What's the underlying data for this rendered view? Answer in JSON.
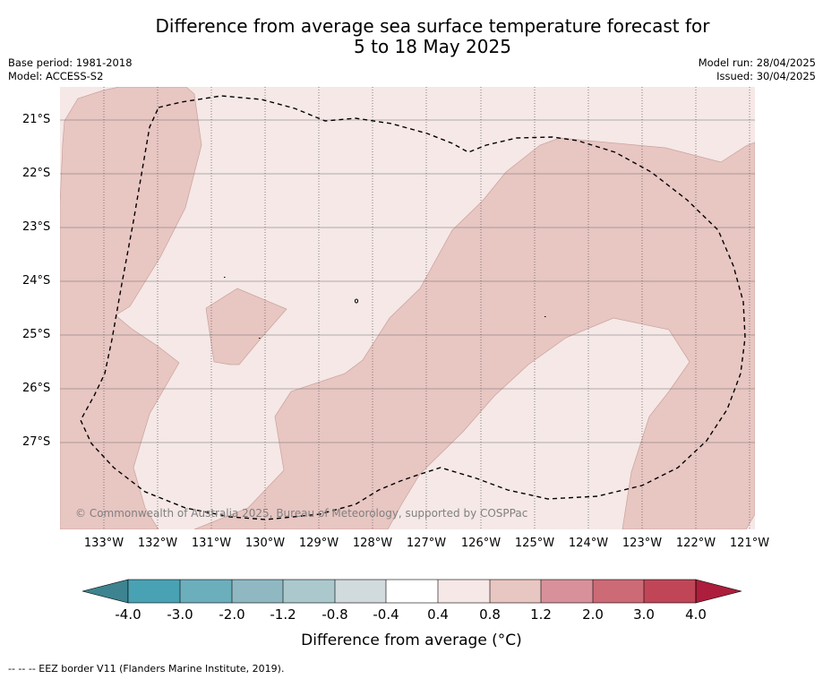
{
  "title": {
    "line1": "Difference from average sea surface temperature forecast for",
    "line2": "5 to 18 May 2025"
  },
  "meta": {
    "base_period": "Base period: 1981-2018",
    "model": "Model: ACCESS-S2",
    "model_run": "Model run: 28/04/2025",
    "issued": "Issued: 30/04/2025"
  },
  "map": {
    "lat_labels": [
      "21°S",
      "22°S",
      "23°S",
      "24°S",
      "25°S",
      "26°S",
      "27°S"
    ],
    "lon_labels": [
      "133°W",
      "132°W",
      "131°W",
      "130°W",
      "129°W",
      "128°W",
      "127°W",
      "126°W",
      "125°W",
      "124°W",
      "123°W",
      "122°W",
      "121°W"
    ],
    "copyright": "© Commonwealth of Australia 2025, Bureau of Meteorology, supported by COSPPac",
    "colors": {
      "anomaly_0_4_to_0_8": "#f5e8e6",
      "anomaly_0_8_to_1_2": "#e8c6c2"
    }
  },
  "colorbar": {
    "ticks": [
      "-4.0",
      "-3.0",
      "-2.0",
      "-1.2",
      "-0.8",
      "-0.4",
      "0.4",
      "0.8",
      "1.2",
      "2.0",
      "3.0",
      "4.0"
    ],
    "colors": [
      "#3d8490",
      "#49a2b3",
      "#6baebc",
      "#8fb8c3",
      "#abc8cd",
      "#d1dadd",
      "#ffffff",
      "#f5e8e6",
      "#e8c6c2",
      "#d8919a",
      "#cc6a75",
      "#c04657",
      "#ac1e3c"
    ],
    "label": "Difference from average (°C)"
  },
  "footnote": "--  --  -- EEZ border V11 (Flanders Marine Institute, 2019)."
}
